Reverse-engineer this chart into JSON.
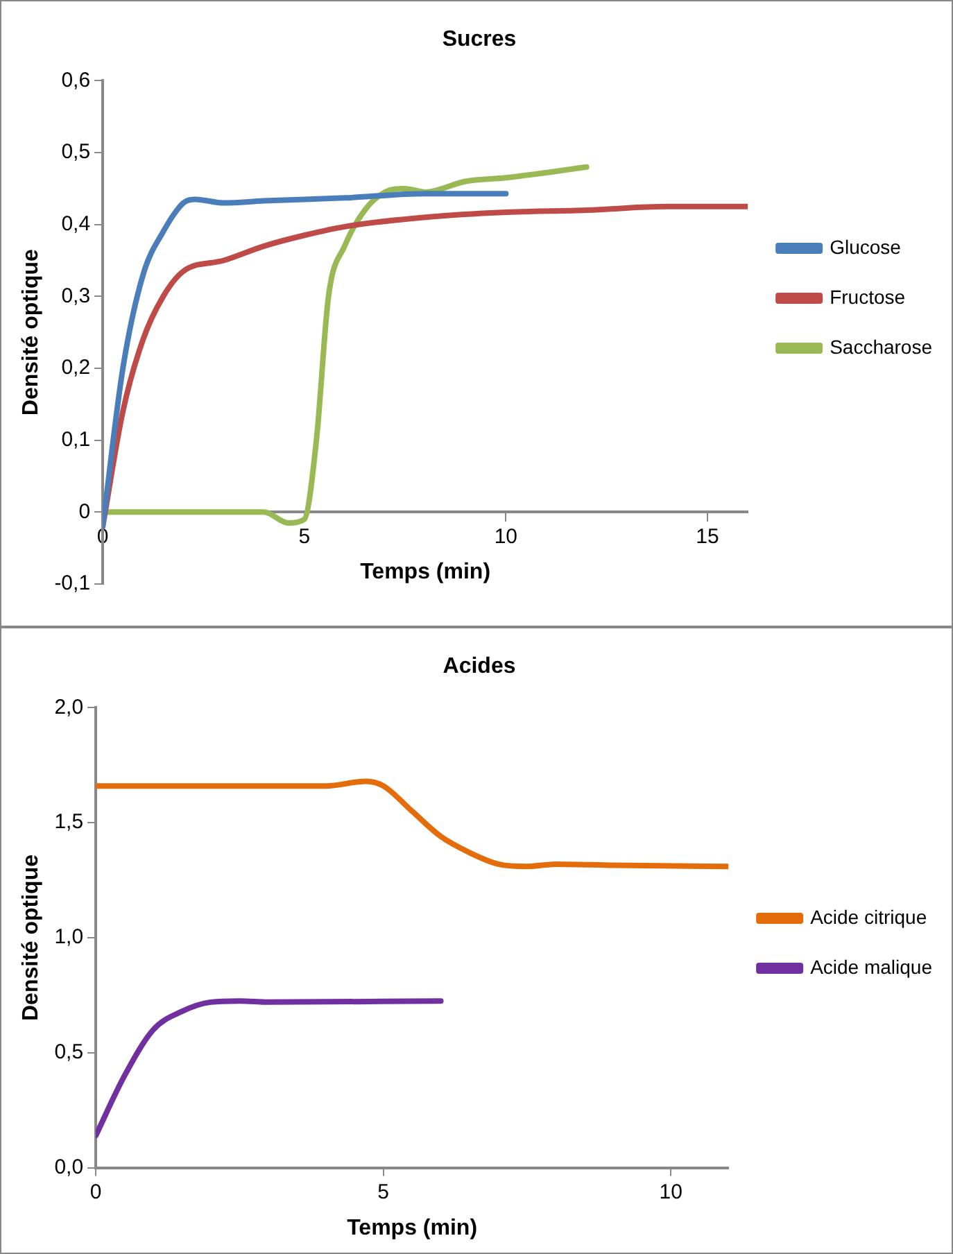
{
  "chart_data": [
    {
      "type": "line",
      "title": "Sucres",
      "xlabel": "Temps (min)",
      "ylabel": "Densité optique",
      "xlim": [
        0,
        16
      ],
      "xticks": [
        0,
        5,
        10,
        15
      ],
      "ylim": [
        -0.1,
        0.6
      ],
      "yticks": [
        {
          "value": -0.1,
          "label": "-0,1"
        },
        0,
        {
          "value": 0.1,
          "label": "0,1"
        },
        {
          "value": 0.2,
          "label": "0,2"
        },
        {
          "value": 0.3,
          "label": "0,3"
        },
        {
          "value": 0.4,
          "label": "0,4"
        },
        {
          "value": 0.5,
          "label": "0,5"
        },
        {
          "value": 0.6,
          "label": "0,6"
        }
      ],
      "grid": false,
      "legend": "right",
      "marker": "none",
      "line_style": "solid",
      "series": [
        {
          "name": "Glucose",
          "color": "#4a7ebb",
          "x": [
            0,
            0.5,
            1,
            1.5,
            2,
            2.3,
            3,
            4,
            6,
            8,
            10
          ],
          "values": [
            -0.02,
            0.2,
            0.33,
            0.39,
            0.43,
            0.435,
            0.43,
            0.433,
            0.437,
            0.443,
            0.443
          ]
        },
        {
          "name": "Fructose",
          "color": "#be4b48",
          "x": [
            0,
            0.5,
            1,
            1.5,
            2,
            3,
            4,
            5,
            6,
            8,
            10,
            12,
            14,
            16
          ],
          "values": [
            -0.02,
            0.14,
            0.24,
            0.3,
            0.335,
            0.35,
            0.37,
            0.385,
            0.397,
            0.41,
            0.417,
            0.42,
            0.425,
            0.425
          ]
        },
        {
          "name": "Saccharose",
          "color": "#98b954",
          "x": [
            0,
            4,
            4.6,
            5,
            5.3,
            5.6,
            6,
            6.5,
            7,
            7.5,
            8,
            9,
            10,
            12
          ],
          "values": [
            0,
            0,
            -0.015,
            -0.01,
            0.1,
            0.3,
            0.37,
            0.42,
            0.445,
            0.45,
            0.445,
            0.46,
            0.465,
            0.48
          ]
        }
      ]
    },
    {
      "type": "line",
      "title": "Acides",
      "xlabel": "Temps (min)",
      "ylabel": "Densité optique",
      "xlim": [
        0,
        11
      ],
      "xticks": [
        0,
        5,
        10
      ],
      "ylim": [
        0,
        2
      ],
      "yticks": [
        {
          "value": 0,
          "label": "0,0"
        },
        {
          "value": 0.5,
          "label": "0,5"
        },
        {
          "value": 1,
          "label": "1,0"
        },
        {
          "value": 1.5,
          "label": "1,5"
        },
        {
          "value": 2,
          "label": "2,0"
        }
      ],
      "grid": false,
      "legend": "right",
      "marker": "none",
      "line_style": "solid",
      "series": [
        {
          "name": "Acide citrique",
          "color": "#e46c0a",
          "x": [
            0,
            2,
            4,
            4.7,
            5,
            5.5,
            6,
            6.5,
            7,
            7.5,
            8,
            9,
            11
          ],
          "values": [
            1.66,
            1.66,
            1.66,
            1.68,
            1.66,
            1.55,
            1.44,
            1.37,
            1.32,
            1.31,
            1.32,
            1.315,
            1.31
          ]
        },
        {
          "name": "Acide malique",
          "color": "#7030a0",
          "x": [
            0,
            0.5,
            1,
            1.5,
            2,
            2.5,
            3,
            6
          ],
          "values": [
            0.14,
            0.4,
            0.6,
            0.68,
            0.72,
            0.725,
            0.72,
            0.725
          ]
        }
      ]
    }
  ]
}
